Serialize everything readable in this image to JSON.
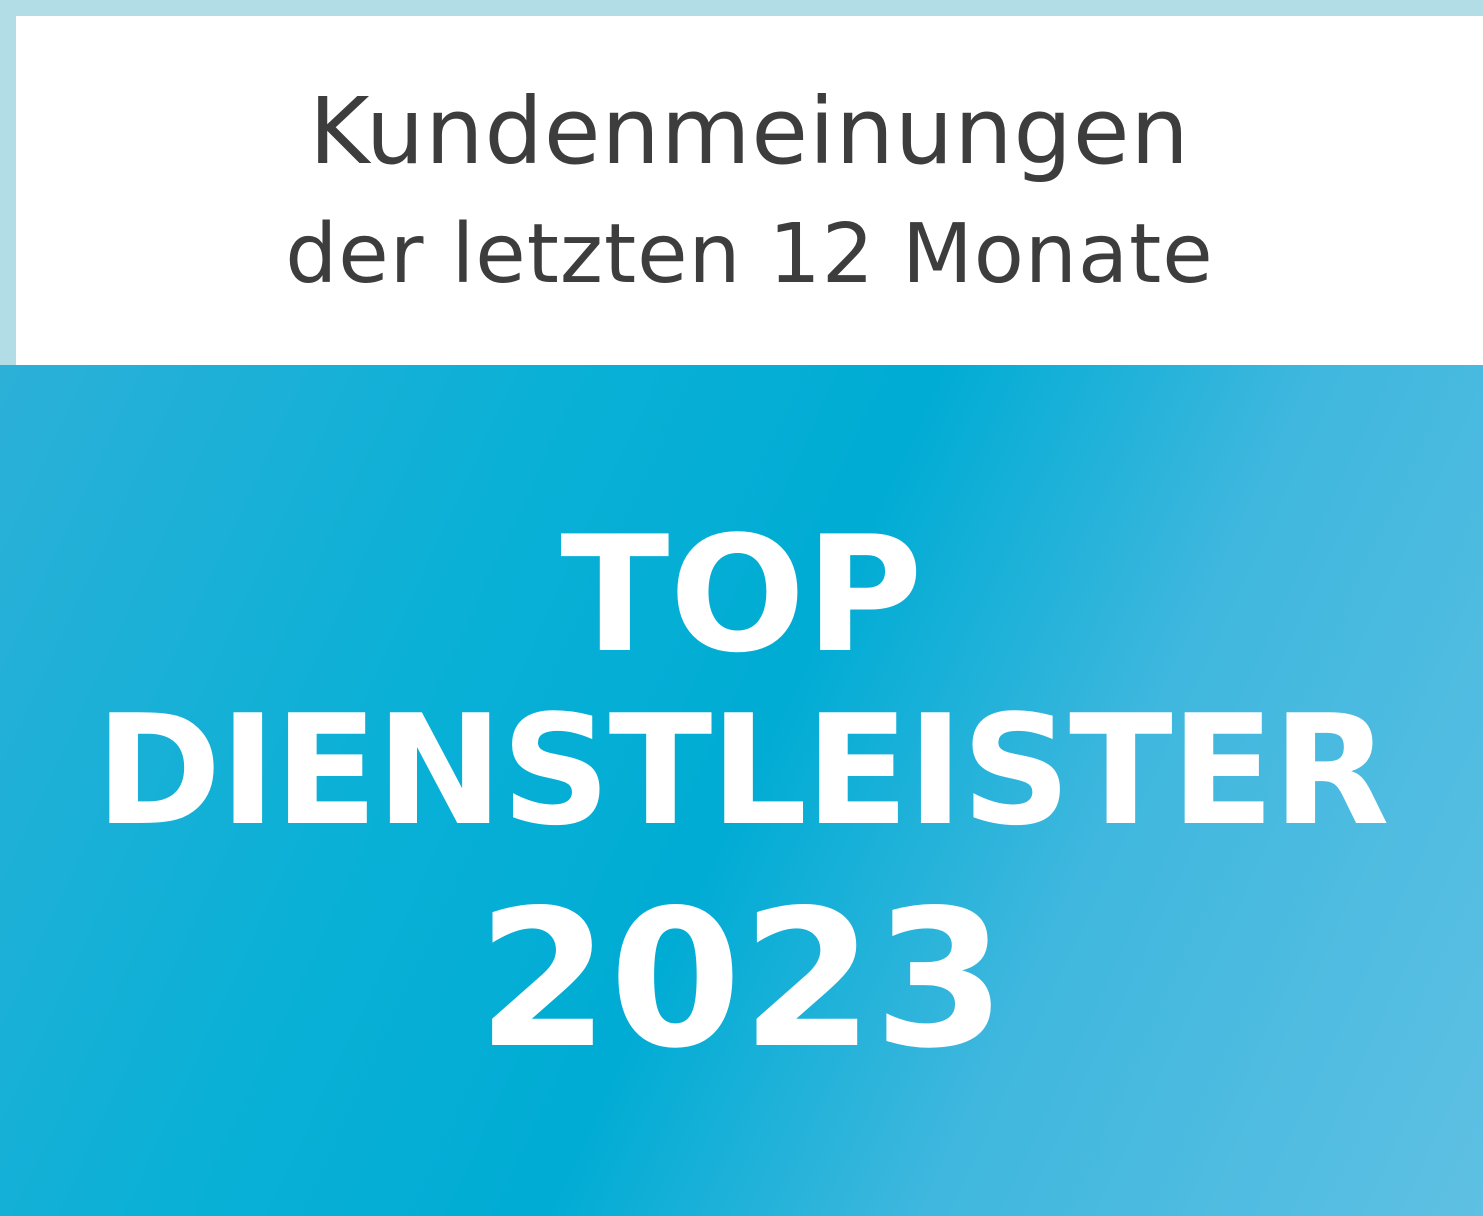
{
  "header": {
    "line1": "Kundenmeinungen",
    "line2": "der letzten 12 Monate"
  },
  "badge": {
    "line1": "TOP",
    "line2": "DIENSTLEISTER",
    "year": "2023"
  },
  "colors": {
    "border": "#b2dde6",
    "accent": "#00acd4",
    "text_dark": "#3d3d3d",
    "text_light": "#ffffff"
  }
}
